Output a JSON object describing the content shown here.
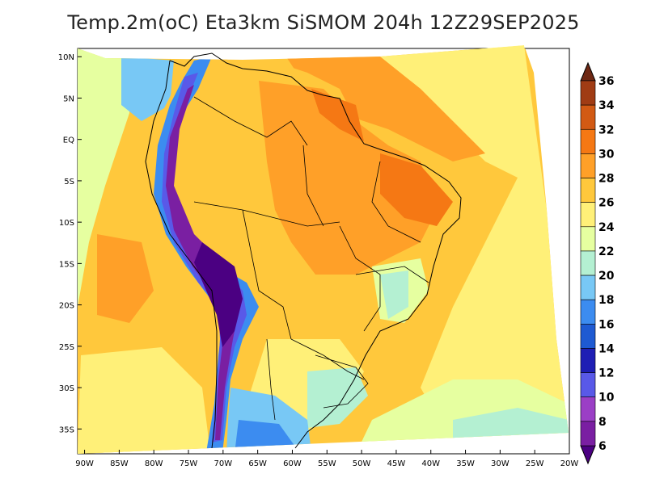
{
  "title": "Temp.2m(oC) Eta3km SiSMOM 204h 12Z29SEP2025",
  "map": {
    "variable": "2 m air temperature",
    "units": "oC",
    "region": "South America",
    "lat_range": [
      -38,
      11
    ],
    "lon_range": [
      -91,
      -20
    ],
    "lat_ticks": [
      "10N",
      "5N",
      "EQ",
      "5S",
      "10S",
      "15S",
      "20S",
      "25S",
      "30S",
      "35S"
    ],
    "lat_values": [
      10,
      5,
      0,
      -5,
      -10,
      -15,
      -20,
      -25,
      -30,
      -35
    ],
    "lon_ticks": [
      "90W",
      "85W",
      "80W",
      "75W",
      "70W",
      "65W",
      "60W",
      "55W",
      "50W",
      "45W",
      "40W",
      "35W",
      "30W",
      "25W",
      "20W"
    ],
    "lon_values": [
      -90,
      -85,
      -80,
      -75,
      -70,
      -65,
      -60,
      -55,
      -50,
      -45,
      -40,
      -35,
      -30,
      -25,
      -20
    ]
  },
  "colorbar": {
    "labels": [
      "36",
      "34",
      "32",
      "30",
      "28",
      "26",
      "24",
      "22",
      "20",
      "18",
      "16",
      "14",
      "12",
      "10",
      "8",
      "6"
    ],
    "bins": [
      {
        "lo": 4,
        "hi": 6,
        "color": "#4b0082"
      },
      {
        "lo": 6,
        "hi": 8,
        "color": "#7a1fa2"
      },
      {
        "lo": 8,
        "hi": 10,
        "color": "#9b3fc6"
      },
      {
        "lo": 10,
        "hi": 12,
        "color": "#5959e8"
      },
      {
        "lo": 12,
        "hi": 14,
        "color": "#1e1eb4"
      },
      {
        "lo": 14,
        "hi": 16,
        "color": "#1e5ad2"
      },
      {
        "lo": 16,
        "hi": 18,
        "color": "#3c8cf0"
      },
      {
        "lo": 18,
        "hi": 20,
        "color": "#78c8f5"
      },
      {
        "lo": 20,
        "hi": 22,
        "color": "#b4f0d2"
      },
      {
        "lo": 22,
        "hi": 24,
        "color": "#e6ffa0"
      },
      {
        "lo": 24,
        "hi": 26,
        "color": "#fff078"
      },
      {
        "lo": 26,
        "hi": 28,
        "color": "#ffc83c"
      },
      {
        "lo": 28,
        "hi": 30,
        "color": "#ffa028"
      },
      {
        "lo": 30,
        "hi": 32,
        "color": "#f57814"
      },
      {
        "lo": 32,
        "hi": 34,
        "color": "#d25a14"
      },
      {
        "lo": 34,
        "hi": 36,
        "color": "#a03c14"
      },
      {
        "lo": 36,
        "hi": 38,
        "color": "#6e2814"
      }
    ]
  }
}
